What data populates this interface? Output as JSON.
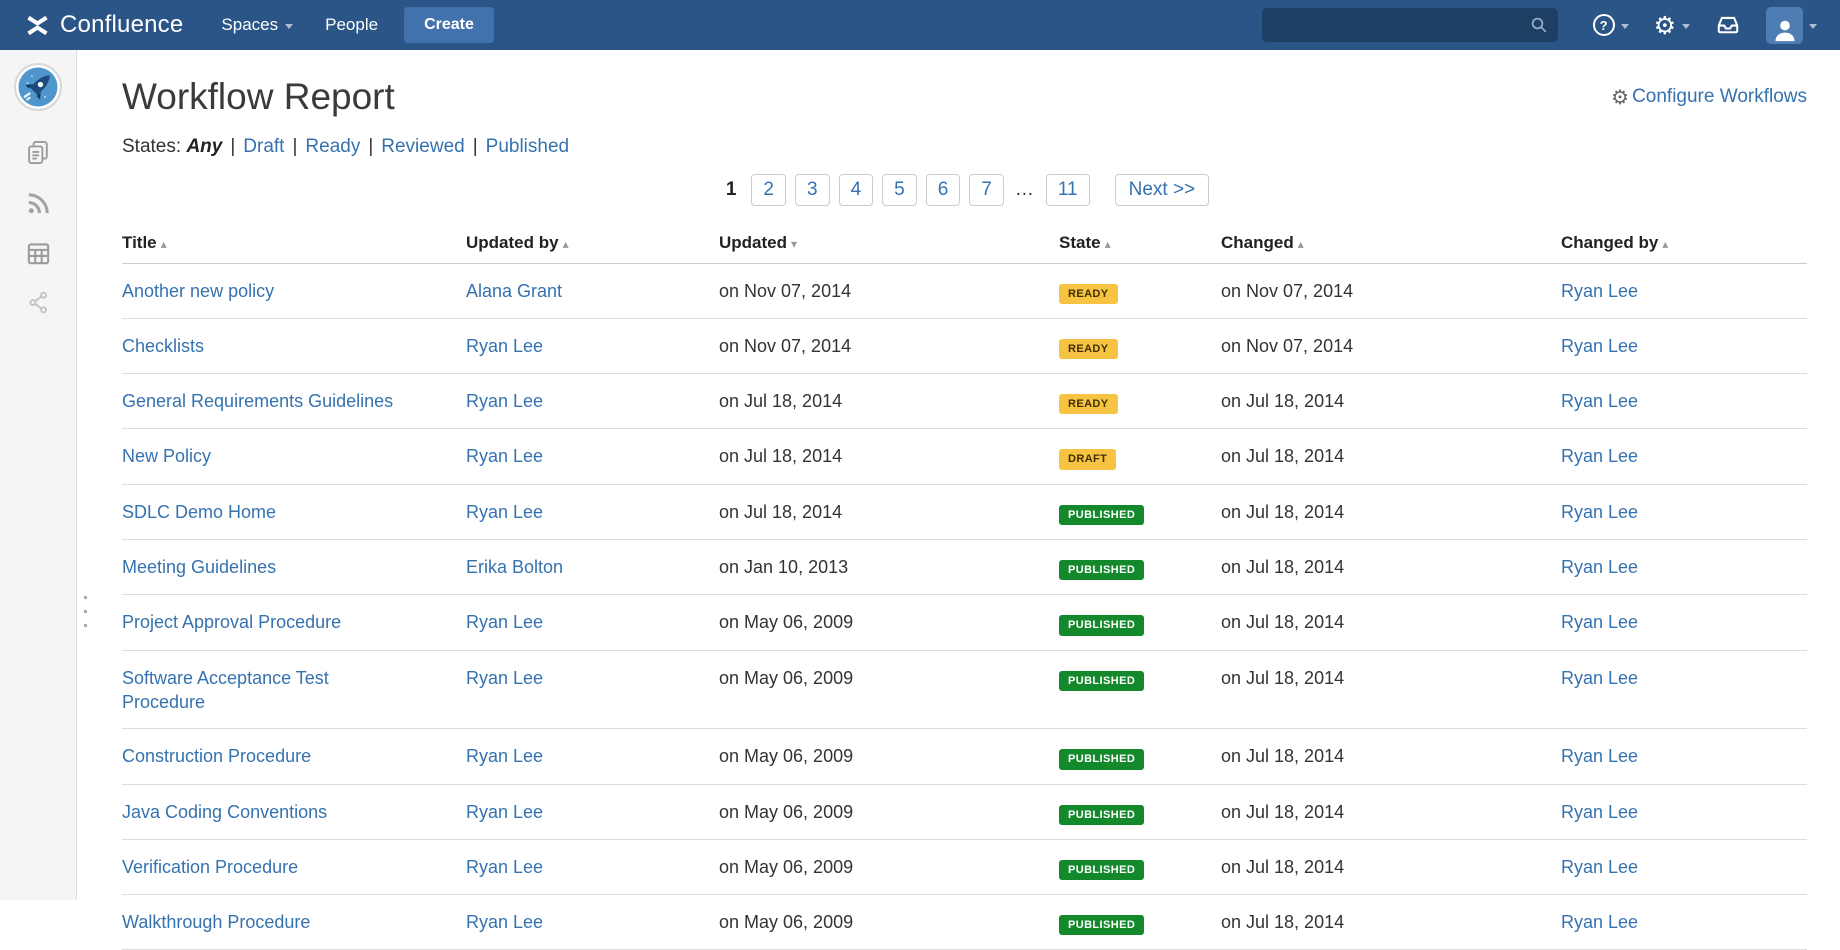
{
  "colors": {
    "navbar_bg": "#2a5586",
    "create_button_bg": "#4272ad",
    "search_bg": "#1d3f64",
    "link_blue": "#3572b0",
    "text": "#333333",
    "badge_yellow_bg": "#f6c342",
    "badge_yellow_text": "#403000",
    "badge_green_bg": "#14892c",
    "badge_green_text": "#ffffff",
    "sidebar_bg": "#f5f5f5",
    "row_border": "#dddddd"
  },
  "navbar": {
    "brand": "Confluence",
    "menu": [
      {
        "label": "Spaces",
        "caret": true
      },
      {
        "label": "People",
        "caret": false
      }
    ],
    "create_label": "Create",
    "search_placeholder": "",
    "icons": [
      "confluence-logo-icon",
      "search-icon",
      "help-icon",
      "gear-icon",
      "inbox-icon",
      "user-avatar-icon"
    ]
  },
  "sidebar": {
    "icons": [
      "space-logo-rocket",
      "pages-icon",
      "blog-feed-icon",
      "calendar-icon",
      "share-icon"
    ]
  },
  "page": {
    "title": "Workflow Report",
    "configure_label": "Configure Workflows",
    "states": {
      "label": "States:",
      "active": "Any",
      "separator": "|",
      "options": [
        "Draft",
        "Ready",
        "Reviewed",
        "Published"
      ]
    },
    "pagination": {
      "current": "1",
      "pages": [
        "2",
        "3",
        "4",
        "5",
        "6",
        "7"
      ],
      "ellipsis": "…",
      "last_page": "11",
      "next_label": "Next >>"
    }
  },
  "table": {
    "columns": [
      {
        "key": "title",
        "label": "Title",
        "sort": "asc"
      },
      {
        "key": "updated_by",
        "label": "Updated by",
        "sort": "asc"
      },
      {
        "key": "updated",
        "label": "Updated",
        "sort": "desc"
      },
      {
        "key": "state",
        "label": "State",
        "sort": "asc"
      },
      {
        "key": "changed",
        "label": "Changed",
        "sort": "asc"
      },
      {
        "key": "changed_by",
        "label": "Changed by",
        "sort": "asc"
      }
    ],
    "state_styles": {
      "READY": "yellow",
      "DRAFT": "yellow",
      "PUBLISHED": "green"
    },
    "rows": [
      {
        "title": "Another new policy",
        "updated_by": "Alana Grant",
        "updated": "on Nov 07, 2014",
        "state": "READY",
        "changed": "on Nov 07, 2014",
        "changed_by": "Ryan Lee"
      },
      {
        "title": "Checklists",
        "updated_by": "Ryan Lee",
        "updated": "on Nov 07, 2014",
        "state": "READY",
        "changed": "on Nov 07, 2014",
        "changed_by": "Ryan Lee"
      },
      {
        "title": "General Requirements Guidelines",
        "updated_by": "Ryan Lee",
        "updated": "on Jul 18, 2014",
        "state": "READY",
        "changed": "on Jul 18, 2014",
        "changed_by": "Ryan Lee"
      },
      {
        "title": "New Policy",
        "updated_by": "Ryan Lee",
        "updated": "on Jul 18, 2014",
        "state": "DRAFT",
        "changed": "on Jul 18, 2014",
        "changed_by": "Ryan Lee"
      },
      {
        "title": "SDLC Demo Home",
        "updated_by": "Ryan Lee",
        "updated": "on Jul 18, 2014",
        "state": "PUBLISHED",
        "changed": "on Jul 18, 2014",
        "changed_by": "Ryan Lee"
      },
      {
        "title": "Meeting Guidelines",
        "updated_by": "Erika Bolton",
        "updated": "on Jan 10, 2013",
        "state": "PUBLISHED",
        "changed": "on Jul 18, 2014",
        "changed_by": "Ryan Lee"
      },
      {
        "title": "Project Approval Procedure",
        "updated_by": "Ryan Lee",
        "updated": "on May 06, 2009",
        "state": "PUBLISHED",
        "changed": "on Jul 18, 2014",
        "changed_by": "Ryan Lee"
      },
      {
        "title": "Software Acceptance Test Procedure",
        "updated_by": "Ryan Lee",
        "updated": "on May 06, 2009",
        "state": "PUBLISHED",
        "changed": "on Jul 18, 2014",
        "changed_by": "Ryan Lee"
      },
      {
        "title": "Construction Procedure",
        "updated_by": "Ryan Lee",
        "updated": "on May 06, 2009",
        "state": "PUBLISHED",
        "changed": "on Jul 18, 2014",
        "changed_by": "Ryan Lee"
      },
      {
        "title": "Java Coding Conventions",
        "updated_by": "Ryan Lee",
        "updated": "on May 06, 2009",
        "state": "PUBLISHED",
        "changed": "on Jul 18, 2014",
        "changed_by": "Ryan Lee"
      },
      {
        "title": "Verification Procedure",
        "updated_by": "Ryan Lee",
        "updated": "on May 06, 2009",
        "state": "PUBLISHED",
        "changed": "on Jul 18, 2014",
        "changed_by": "Ryan Lee"
      },
      {
        "title": "Walkthrough Procedure",
        "updated_by": "Ryan Lee",
        "updated": "on May 06, 2009",
        "state": "PUBLISHED",
        "changed": "on Jul 18, 2014",
        "changed_by": "Ryan Lee"
      }
    ]
  }
}
